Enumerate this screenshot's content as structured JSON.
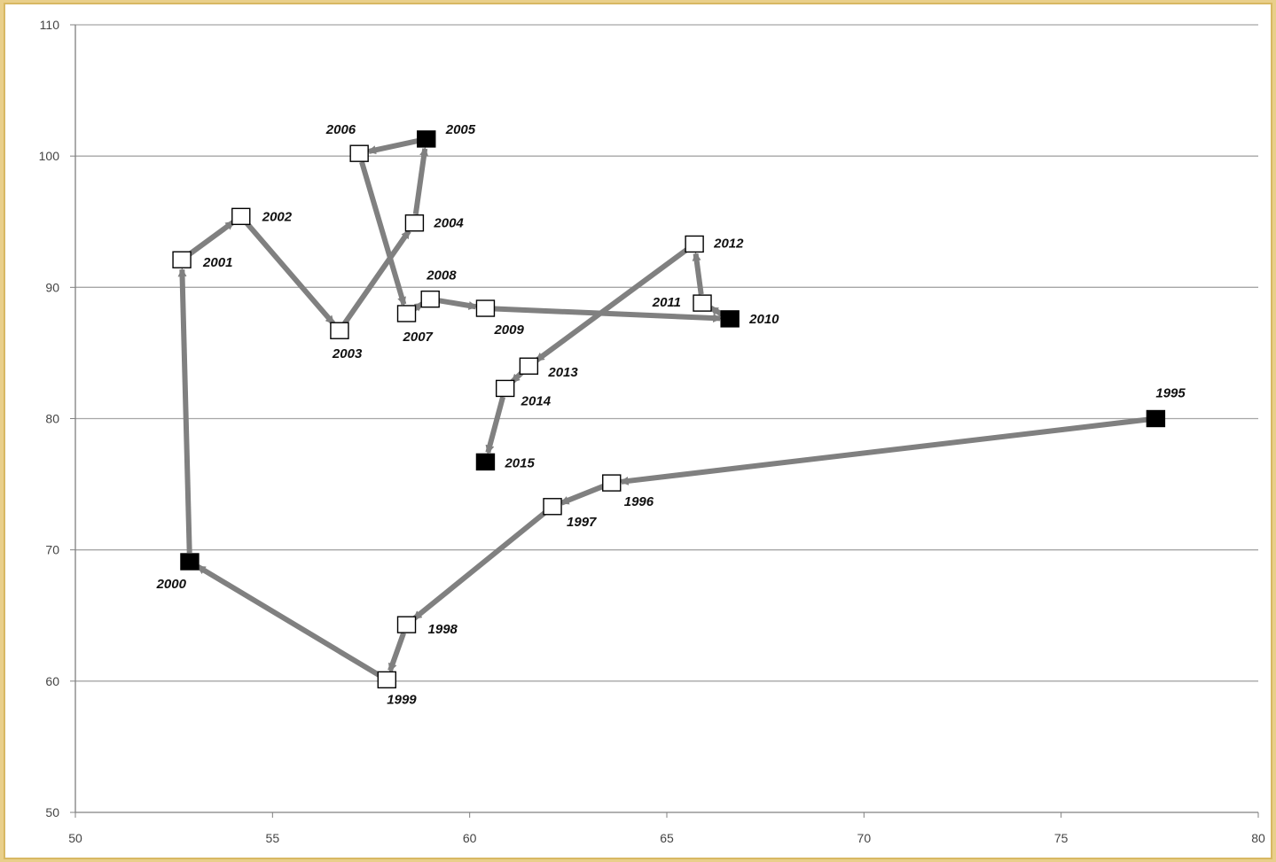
{
  "chart_data": {
    "type": "scatter",
    "title": "",
    "xlabel": "",
    "ylabel": "",
    "xlim": [
      50,
      80
    ],
    "ylim": [
      50,
      110
    ],
    "x_ticks": [
      50,
      55,
      60,
      65,
      70,
      75,
      80
    ],
    "y_ticks": [
      50,
      60,
      70,
      80,
      90,
      100,
      110
    ],
    "grid": "horizontal",
    "connected": true,
    "arrow_color": "#808080",
    "marker_open_color": "#ffffff",
    "marker_filled_color": "#000000",
    "points": [
      {
        "label": "1995",
        "x": 77.4,
        "y": 80.0,
        "filled": true
      },
      {
        "label": "1996",
        "x": 63.6,
        "y": 75.1,
        "filled": false
      },
      {
        "label": "1997",
        "x": 62.1,
        "y": 73.3,
        "filled": false
      },
      {
        "label": "1998",
        "x": 58.4,
        "y": 64.3,
        "filled": false
      },
      {
        "label": "1999",
        "x": 57.9,
        "y": 60.1,
        "filled": false
      },
      {
        "label": "2000",
        "x": 52.9,
        "y": 69.1,
        "filled": true
      },
      {
        "label": "2001",
        "x": 52.7,
        "y": 92.1,
        "filled": false
      },
      {
        "label": "2002",
        "x": 54.2,
        "y": 95.4,
        "filled": false
      },
      {
        "label": "2003",
        "x": 56.7,
        "y": 86.7,
        "filled": false
      },
      {
        "label": "2004",
        "x": 58.6,
        "y": 94.9,
        "filled": false
      },
      {
        "label": "2005",
        "x": 58.9,
        "y": 101.3,
        "filled": true
      },
      {
        "label": "2006",
        "x": 57.2,
        "y": 100.2,
        "filled": false
      },
      {
        "label": "2007",
        "x": 58.4,
        "y": 88.0,
        "filled": false
      },
      {
        "label": "2008",
        "x": 59.0,
        "y": 89.1,
        "filled": false
      },
      {
        "label": "2009",
        "x": 60.4,
        "y": 88.4,
        "filled": false
      },
      {
        "label": "2010",
        "x": 66.6,
        "y": 87.6,
        "filled": true
      },
      {
        "label": "2011",
        "x": 65.9,
        "y": 88.8,
        "filled": false
      },
      {
        "label": "2012",
        "x": 65.7,
        "y": 93.3,
        "filled": false
      },
      {
        "label": "2013",
        "x": 61.5,
        "y": 84.0,
        "filled": false
      },
      {
        "label": "2014",
        "x": 60.9,
        "y": 82.3,
        "filled": false
      },
      {
        "label": "2015",
        "x": 60.4,
        "y": 76.7,
        "filled": true
      }
    ]
  }
}
